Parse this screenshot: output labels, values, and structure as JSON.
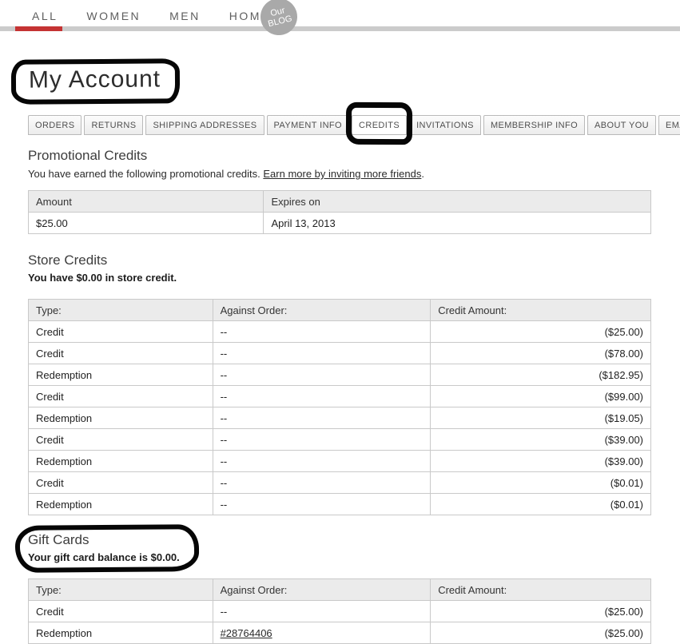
{
  "nav": {
    "items": [
      {
        "label": "ALL",
        "active": true
      },
      {
        "label": "WOMEN",
        "active": false
      },
      {
        "label": "MEN",
        "active": false
      },
      {
        "label": "HOME",
        "active": false
      }
    ],
    "blog": {
      "line1": "Our",
      "line2": "BLOG"
    }
  },
  "page_title": "My Account",
  "tabs": [
    {
      "label": "ORDERS",
      "active": false
    },
    {
      "label": "RETURNS",
      "active": false
    },
    {
      "label": "SHIPPING ADDRESSES",
      "active": false
    },
    {
      "label": "PAYMENT INFO",
      "active": false
    },
    {
      "label": "CREDITS",
      "active": true
    },
    {
      "label": "INVITATIONS",
      "active": false
    },
    {
      "label": "MEMBERSHIP INFO",
      "active": false
    },
    {
      "label": "ABOUT YOU",
      "active": false
    },
    {
      "label": "EMAIL & PASSWORD",
      "active": false
    }
  ],
  "sections": {
    "promotional": {
      "title": "Promotional Credits",
      "intro_text": "You have earned the following promotional credits. ",
      "intro_link": "Earn more by inviting more friends",
      "intro_suffix": ".",
      "table": {
        "headers": [
          "Amount",
          "Expires on"
        ],
        "rows": [
          [
            "$25.00",
            "April 13, 2013"
          ]
        ]
      }
    },
    "store": {
      "title": "Store Credits",
      "subtitle": "You have $0.00 in store credit.",
      "table": {
        "headers": [
          "Type:",
          "Against Order:",
          "Credit Amount:"
        ],
        "rows": [
          [
            "Credit",
            "--",
            "($25.00)"
          ],
          [
            "Credit",
            "--",
            "($78.00)"
          ],
          [
            "Redemption",
            "--",
            "($182.95)"
          ],
          [
            "Credit",
            "--",
            "($99.00)"
          ],
          [
            "Redemption",
            "--",
            "($19.05)"
          ],
          [
            "Credit",
            "--",
            "($39.00)"
          ],
          [
            "Redemption",
            "--",
            "($39.00)"
          ],
          [
            "Credit",
            "--",
            "($0.01)"
          ],
          [
            "Redemption",
            "--",
            "($0.01)"
          ]
        ]
      }
    },
    "gift": {
      "title": "Gift Cards",
      "subtitle": "Your gift card balance is $0.00.",
      "table": {
        "headers": [
          "Type:",
          "Against Order:",
          "Credit Amount:"
        ],
        "rows": [
          [
            "Credit",
            "--",
            "($25.00)"
          ],
          [
            "Redemption",
            "#28764406",
            "($25.00)"
          ]
        ]
      }
    }
  },
  "colors": {
    "accent_red": "#c53333",
    "nav_bar_gray": "#cbcbcb",
    "blog_badge_gray": "#a9a9a9",
    "table_header_bg": "#ebebeb",
    "table_border": "#c9c9c9",
    "annotation_black": "#060606"
  }
}
